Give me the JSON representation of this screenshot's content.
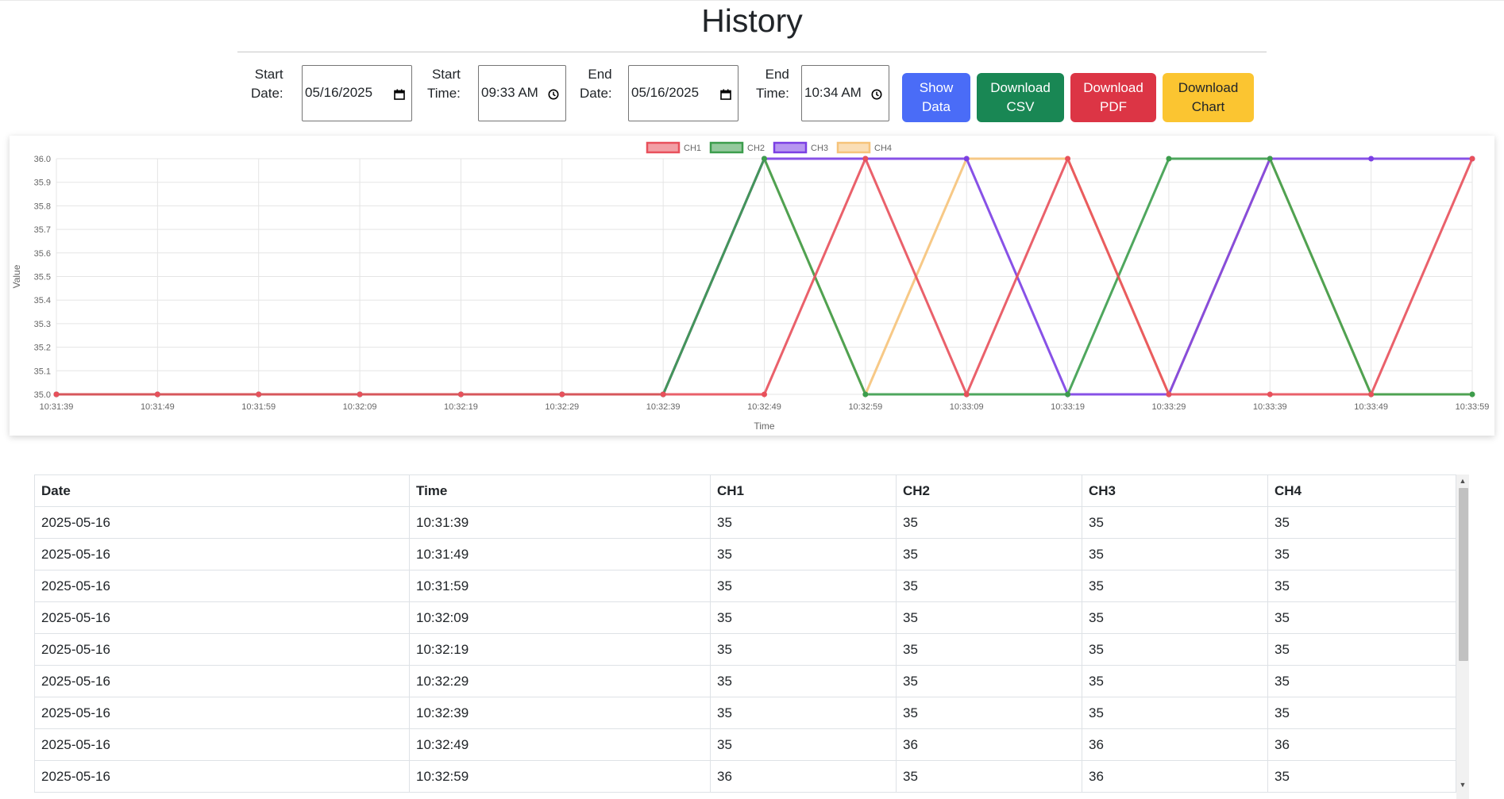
{
  "page_title": "History",
  "filters": {
    "start_date_label": "Start\nDate:",
    "start_date_value": "05/16/2025",
    "start_time_label": "Start\nTime:",
    "start_time_value": "09:33 AM",
    "end_date_label": "End\nDate:",
    "end_date_value": "05/16/2025",
    "end_time_label": "End\nTime:",
    "end_time_value": "10:34 AM"
  },
  "buttons": {
    "show_data": "Show\nData",
    "download_csv": "Download\nCSV",
    "download_pdf": "Download\nPDF",
    "download_chart": "Download\nChart"
  },
  "colors": {
    "show_data": "#4a6cf7",
    "download_csv": "#198754",
    "download_pdf": "#dc3545",
    "download_chart": "#ffc107"
  },
  "icons": {
    "date": "calendar-icon",
    "time": "clock-icon"
  },
  "chart_data": {
    "type": "line",
    "xlabel": "Time",
    "ylabel": "Value",
    "ylim": [
      35.0,
      36.0
    ],
    "yticks": [
      "36.0",
      "35.9",
      "35.8",
      "35.7",
      "35.6",
      "35.5",
      "35.4",
      "35.3",
      "35.2",
      "35.1",
      "35.0"
    ],
    "legend_position": "top",
    "grid": true,
    "categories": [
      "10:31:39",
      "10:31:49",
      "10:31:59",
      "10:32:09",
      "10:32:19",
      "10:32:29",
      "10:32:39",
      "10:32:49",
      "10:32:59",
      "10:33:09",
      "10:33:19",
      "10:33:29",
      "10:33:39",
      "10:33:49",
      "10:33:59"
    ],
    "series": [
      {
        "name": "CH1",
        "color": "#e8505b",
        "values": [
          35,
          35,
          35,
          35,
          35,
          35,
          35,
          35,
          36,
          35,
          36,
          35,
          35,
          35,
          36
        ]
      },
      {
        "name": "CH2",
        "color": "#3c9d4c",
        "values": [
          35,
          35,
          35,
          35,
          35,
          35,
          35,
          36,
          35,
          35,
          35,
          36,
          36,
          35,
          35
        ]
      },
      {
        "name": "CH3",
        "color": "#7b3fe4",
        "values": [
          35,
          35,
          35,
          35,
          35,
          35,
          35,
          36,
          36,
          36,
          35,
          35,
          36,
          36,
          36
        ]
      },
      {
        "name": "CH4",
        "color": "#f6c37a",
        "values": [
          35,
          35,
          35,
          35,
          35,
          35,
          35,
          36,
          35,
          36,
          36,
          35,
          36,
          35,
          35
        ]
      }
    ]
  },
  "table": {
    "headers": [
      "Date",
      "Time",
      "CH1",
      "CH2",
      "CH3",
      "CH4"
    ],
    "rows": [
      [
        "2025-05-16",
        "10:31:39",
        "35",
        "35",
        "35",
        "35"
      ],
      [
        "2025-05-16",
        "10:31:49",
        "35",
        "35",
        "35",
        "35"
      ],
      [
        "2025-05-16",
        "10:31:59",
        "35",
        "35",
        "35",
        "35"
      ],
      [
        "2025-05-16",
        "10:32:09",
        "35",
        "35",
        "35",
        "35"
      ],
      [
        "2025-05-16",
        "10:32:19",
        "35",
        "35",
        "35",
        "35"
      ],
      [
        "2025-05-16",
        "10:32:29",
        "35",
        "35",
        "35",
        "35"
      ],
      [
        "2025-05-16",
        "10:32:39",
        "35",
        "35",
        "35",
        "35"
      ],
      [
        "2025-05-16",
        "10:32:49",
        "35",
        "36",
        "36",
        "36"
      ],
      [
        "2025-05-16",
        "10:32:59",
        "36",
        "35",
        "36",
        "35"
      ]
    ]
  }
}
